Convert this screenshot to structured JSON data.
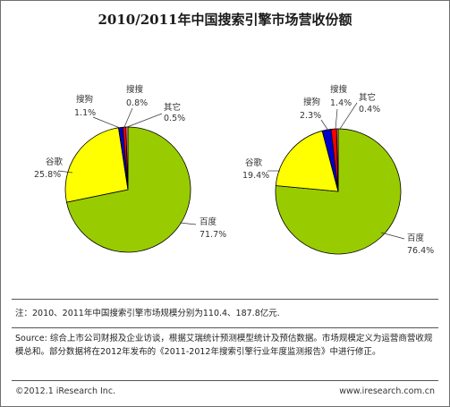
{
  "title": "2010/2011年中国搜索引擎市场营收份额",
  "colors": {
    "百度": "#99cc00",
    "谷歌": "#ffff00",
    "搜狗": "#0000cc",
    "搜搜": "#ff0000",
    "其它": "#ff9999",
    "outline": "#000000"
  },
  "chart_data": [
    {
      "type": "pie",
      "year": "2010",
      "slices": [
        {
          "label": "百度",
          "value": 71.7,
          "value_text": "71.7%"
        },
        {
          "label": "谷歌",
          "value": 25.8,
          "value_text": "25.8%"
        },
        {
          "label": "搜狗",
          "value": 1.1,
          "value_text": "1.1%"
        },
        {
          "label": "搜搜",
          "value": 0.8,
          "value_text": "0.8%"
        },
        {
          "label": "其它",
          "value": 0.5,
          "value_text": "0.5%"
        }
      ]
    },
    {
      "type": "pie",
      "year": "2011",
      "slices": [
        {
          "label": "百度",
          "value": 76.4,
          "value_text": "76.4%"
        },
        {
          "label": "谷歌",
          "value": 19.4,
          "value_text": "19.4%"
        },
        {
          "label": "搜狗",
          "value": 2.3,
          "value_text": "2.3%"
        },
        {
          "label": "搜搜",
          "value": 1.4,
          "value_text": "1.4%"
        },
        {
          "label": "其它",
          "value": 0.4,
          "value_text": "0.4%"
        }
      ]
    }
  ],
  "note": "注：2010、2011年中国搜索引擎市场规模分别为110.4、187.8亿元.",
  "source": "Source: 综合上市公司财报及企业访谈，根据艾瑞统计预测模型统计及预估数据。市场规模定义为运营商营收规模总和。部分数据将在2012年发布的《2011-2012年搜索引擎行业年度监测报告》中进行修正。",
  "copyright": "©2012.1 iResearch Inc.",
  "website": "www.iresearch.com.cn"
}
